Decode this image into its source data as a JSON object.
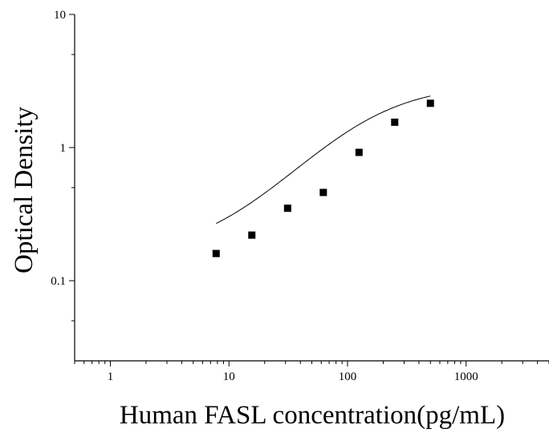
{
  "chart_data": {
    "type": "scatter",
    "title": "",
    "xlabel": "Human FASL concentration(pg/mL)",
    "ylabel": "Optical Density",
    "x_scale": "log",
    "y_scale": "log",
    "xlim": [
      0.5,
      5000
    ],
    "ylim": [
      0.025,
      10
    ],
    "x_ticks": [
      {
        "value": 1,
        "label": "1"
      },
      {
        "value": 10,
        "label": "10"
      },
      {
        "value": 100,
        "label": "100"
      },
      {
        "value": 1000,
        "label": "1000"
      }
    ],
    "y_ticks": [
      {
        "value": 0.1,
        "label": "0.1"
      },
      {
        "value": 1,
        "label": "1"
      },
      {
        "value": 10,
        "label": "10"
      }
    ],
    "grid": false,
    "legend": "none",
    "marker_color": "#000000",
    "line_color": "#000000",
    "series": [
      {
        "type": "scatter",
        "marker": "square",
        "x": [
          7.8,
          15.6,
          31.25,
          62.5,
          125,
          250,
          500
        ],
        "y": [
          0.16,
          0.22,
          0.35,
          0.46,
          0.92,
          1.55,
          2.15
        ]
      },
      {
        "type": "line",
        "fit": "four-parameter logistic",
        "x_range": [
          7.8,
          500
        ],
        "params": {
          "bottom": 0.155,
          "top": 3.0,
          "ec50": 140,
          "hill": 1.1
        }
      }
    ]
  }
}
